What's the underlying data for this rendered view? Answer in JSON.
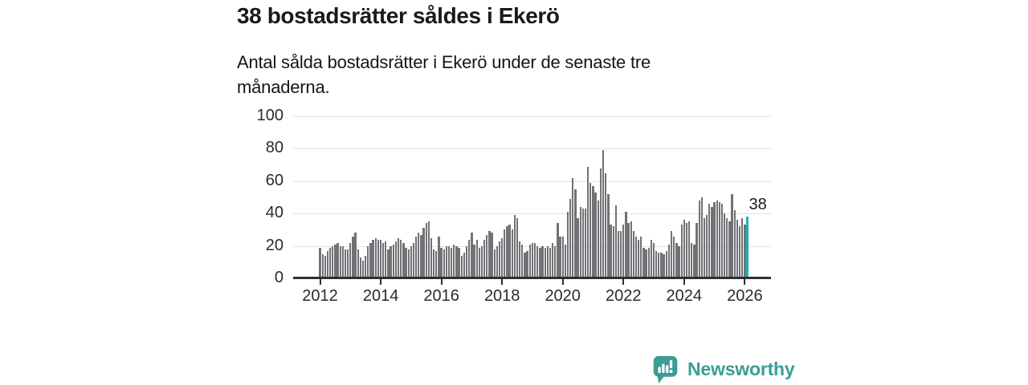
{
  "chart_data": {
    "type": "bar",
    "title": "38 bostadsrätter såldes i Ekerö",
    "subtitle": "Antal sålda bostadsrätter i Ekerö under de senaste tre månaderna.",
    "x_start": "2012-01",
    "x_end": "2026-02",
    "x_tick_labels": [
      "2012",
      "2014",
      "2016",
      "2018",
      "2020",
      "2022",
      "2024",
      "2026"
    ],
    "y_tick_labels": [
      "0",
      "20",
      "40",
      "60",
      "80",
      "100"
    ],
    "y_ticks": [
      0,
      20,
      40,
      60,
      80,
      100
    ],
    "ylim": [
      0,
      100
    ],
    "grid": "horizontal",
    "bar_color": "#717176",
    "axis_color": "#2f2f2f",
    "gridline_color": "#e3e3e3",
    "highlight": {
      "index": 169,
      "value": 38,
      "label": "38",
      "color": "#1fb2ab"
    },
    "values": [
      19,
      15,
      14,
      17,
      19,
      20,
      21,
      22,
      20,
      20,
      18,
      18,
      22,
      26,
      28,
      18,
      13,
      11,
      14,
      20,
      22,
      24,
      25,
      24,
      24,
      22,
      23,
      18,
      20,
      21,
      23,
      25,
      24,
      22,
      19,
      18,
      20,
      22,
      26,
      28,
      27,
      31,
      34,
      35,
      25,
      18,
      17,
      26,
      19,
      18,
      20,
      20,
      19,
      21,
      20,
      19,
      14,
      16,
      20,
      24,
      28,
      21,
      24,
      19,
      20,
      24,
      27,
      29,
      28,
      18,
      20,
      23,
      25,
      30,
      32,
      33,
      30,
      39,
      37,
      23,
      21,
      16,
      17,
      21,
      22,
      22,
      20,
      19,
      20,
      19,
      20,
      19,
      22,
      20,
      34,
      26,
      26,
      21,
      41,
      49,
      62,
      55,
      37,
      44,
      43,
      43,
      69,
      59,
      57,
      53,
      48,
      68,
      79,
      65,
      52,
      33,
      32,
      45,
      29,
      29,
      33,
      41,
      34,
      35,
      29,
      26,
      24,
      26,
      19,
      18,
      19,
      24,
      22,
      17,
      16,
      16,
      15,
      17,
      21,
      29,
      26,
      22,
      20,
      33,
      36,
      34,
      35,
      22,
      21,
      34,
      48,
      50,
      37,
      39,
      46,
      44,
      47,
      48,
      47,
      46,
      40,
      37,
      35,
      52,
      42,
      36,
      32,
      37,
      33,
      38
    ]
  },
  "footer": {
    "logo_text": "Newsworthy",
    "logo_color": "#3a9d96"
  }
}
